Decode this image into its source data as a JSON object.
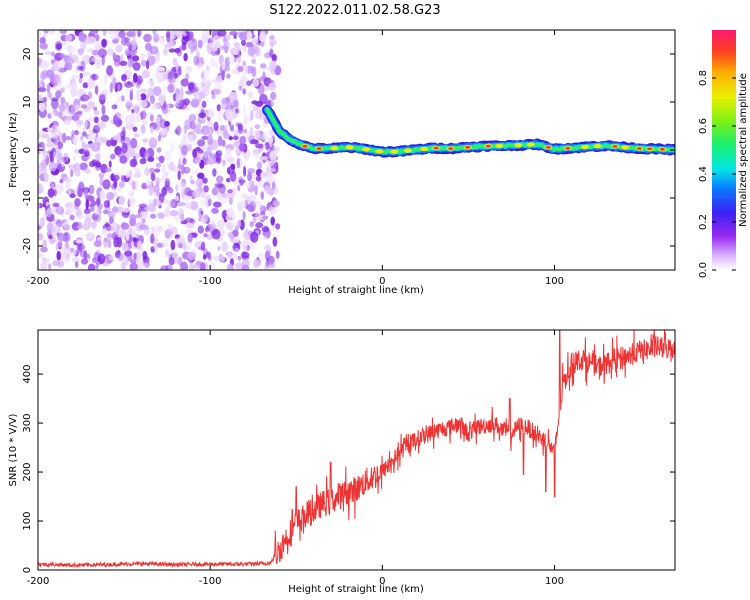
{
  "title": "S122.2022.011.02.58.G23",
  "chart_data": [
    {
      "type": "heatmap",
      "name": "spectrogram",
      "xlabel": "Height of straight line (km)",
      "ylabel": "Frequency (Hz)",
      "xlim": [
        -200,
        170
      ],
      "ylim": [
        -25,
        25
      ],
      "xticks": [
        -200,
        -100,
        0,
        100
      ],
      "yticks": [
        -20,
        -10,
        0,
        10,
        20
      ],
      "colorbar": {
        "label": "Normalized spectral amplitude",
        "range": [
          0,
          1
        ],
        "ticks": [
          "0.0",
          "0.2",
          "0.4",
          "0.6",
          "0.8"
        ]
      },
      "noise_region_x": [
        -200,
        -63
      ],
      "signal_track": {
        "x": [
          -67,
          -63,
          -60,
          -55,
          -50,
          -45,
          -40,
          -30,
          -20,
          -10,
          0,
          10,
          20,
          30,
          40,
          50,
          60,
          70,
          80,
          90,
          100,
          110,
          120,
          130,
          140,
          150,
          160,
          170
        ],
        "freq_hz": [
          8.5,
          6,
          4,
          2.5,
          1.5,
          0.8,
          0.3,
          0.3,
          0.6,
          0.2,
          -0.4,
          -0.3,
          0.1,
          0.4,
          0.3,
          0.6,
          0.8,
          0.9,
          1.0,
          1.2,
          0.2,
          0.4,
          0.7,
          0.9,
          0.6,
          0.3,
          0.2,
          0.0
        ]
      }
    },
    {
      "type": "line",
      "name": "snr",
      "xlabel": "Height of straight line (km)",
      "ylabel": "SNR (10 * V/V)",
      "xlim": [
        -200,
        170
      ],
      "ylim": [
        0,
        490
      ],
      "xticks": [
        -200,
        -100,
        0,
        100
      ],
      "yticks": [
        0,
        100,
        200,
        300,
        400
      ],
      "color": "#ee3333",
      "series": [
        {
          "name": "SNR",
          "x": [
            -200,
            -180,
            -160,
            -140,
            -120,
            -100,
            -80,
            -65,
            -60,
            -55,
            -50,
            -45,
            -40,
            -35,
            -30,
            -25,
            -20,
            -15,
            -10,
            -5,
            0,
            5,
            10,
            15,
            20,
            25,
            30,
            35,
            40,
            45,
            50,
            55,
            60,
            65,
            70,
            75,
            80,
            85,
            90,
            95,
            100,
            105,
            110,
            115,
            120,
            125,
            130,
            135,
            140,
            145,
            150,
            155,
            160,
            165,
            170
          ],
          "values": [
            12,
            10,
            11,
            13,
            11,
            12,
            12,
            14,
            40,
            70,
            95,
            110,
            120,
            135,
            140,
            150,
            160,
            165,
            180,
            190,
            200,
            220,
            240,
            255,
            268,
            275,
            283,
            288,
            293,
            298,
            278,
            292,
            295,
            300,
            285,
            280,
            296,
            290,
            275,
            265,
            240,
            380,
            420,
            430,
            425,
            415,
            420,
            430,
            435,
            440,
            448,
            450,
            455,
            452,
            455
          ]
        }
      ],
      "spikes": [
        {
          "x": -50,
          "value": 170
        },
        {
          "x": -30,
          "value": 220
        },
        {
          "x": 74,
          "value": 350
        },
        {
          "x": 82,
          "value": 195
        },
        {
          "x": 95,
          "value": 160
        },
        {
          "x": 100,
          "value": 150
        },
        {
          "x": 103,
          "value": 490
        }
      ]
    }
  ]
}
